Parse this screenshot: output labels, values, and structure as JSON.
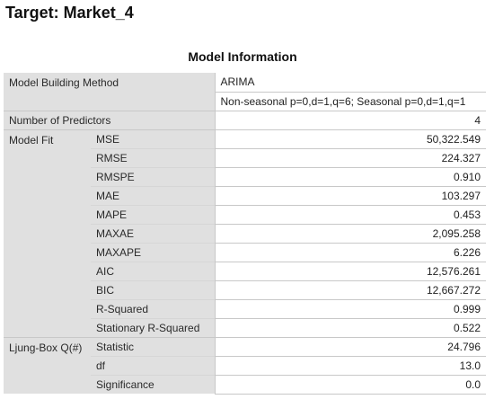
{
  "target_title": "Target: Market_4",
  "caption": "Model Information",
  "method": {
    "label": "Model Building Method",
    "value_line1": "ARIMA",
    "value_line2": "Non-seasonal p=0,d=1,q=6; Seasonal p=0,d=1,q=1"
  },
  "predictors": {
    "label": "Number of Predictors",
    "value": "4"
  },
  "model_fit": {
    "label": "Model Fit",
    "rows": [
      {
        "stat": "MSE",
        "value": "50,322.549"
      },
      {
        "stat": "RMSE",
        "value": "224.327"
      },
      {
        "stat": "RMSPE",
        "value": "0.910"
      },
      {
        "stat": "MAE",
        "value": "103.297"
      },
      {
        "stat": "MAPE",
        "value": "0.453"
      },
      {
        "stat": "MAXAE",
        "value": "2,095.258"
      },
      {
        "stat": "MAXAPE",
        "value": "6.226"
      },
      {
        "stat": "AIC",
        "value": "12,576.261"
      },
      {
        "stat": "BIC",
        "value": "12,667.272"
      },
      {
        "stat": "R-Squared",
        "value": "0.999"
      },
      {
        "stat": "Stationary R-Squared",
        "value": "0.522"
      }
    ]
  },
  "ljung_box": {
    "label": "Ljung-Box Q(#)",
    "rows": [
      {
        "stat": "Statistic",
        "value": "24.796"
      },
      {
        "stat": "df",
        "value": "13.0"
      },
      {
        "stat": "Significance",
        "value": "0.0"
      }
    ]
  }
}
